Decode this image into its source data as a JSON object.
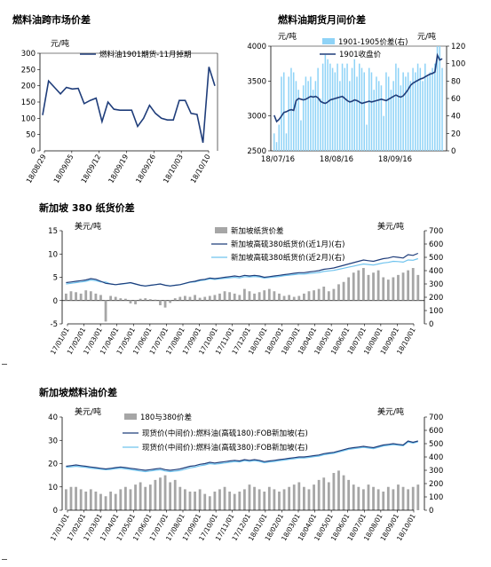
{
  "colors": {
    "navy": "#1f3d7a",
    "light_blue": "#6fc3ee",
    "bar_blue": "#8fd3f7",
    "gray_bar": "#a6a6a6",
    "axis": "#000000"
  },
  "chart_data": [
    {
      "title": "燃料油跨市场价差",
      "type": "line",
      "ylabel": "元/吨",
      "ylim": [
        0,
        300
      ],
      "yticks": [
        "0",
        "50",
        "100",
        "150",
        "200",
        "250",
        "300"
      ],
      "xticks": [
        "18/08/29",
        "18/09/05",
        "18/09/12",
        "18/09/19",
        "18/09/26",
        "18/10/03",
        "18/10/10"
      ],
      "legend_position": "top",
      "series": [
        {
          "name": "燃料油1901期货-11月掉期",
          "color": "#1f3d7a",
          "x": [
            0,
            1,
            2,
            3,
            4,
            5,
            6,
            7,
            8,
            9,
            10,
            11,
            12,
            13,
            14,
            15,
            16,
            17,
            18,
            19,
            20,
            21,
            22,
            23,
            24,
            25,
            26,
            27,
            28,
            29
          ],
          "y": [
            110,
            215,
            195,
            175,
            195,
            190,
            192,
            145,
            155,
            162,
            90,
            150,
            128,
            125,
            125,
            125,
            75,
            100,
            140,
            115,
            100,
            95,
            95,
            155,
            155,
            115,
            112,
            25,
            258,
            200
          ]
        }
      ]
    },
    {
      "title": "燃料油期货月间价差",
      "type": "bar+line",
      "ylabel_left": "元/吨",
      "ylabel_right": "元/吨",
      "ylim_left": [
        2500,
        4000
      ],
      "yticks_left": [
        "2500",
        "3000",
        "3500",
        "4000"
      ],
      "ylim_right": [
        0,
        120
      ],
      "yticks_right": [
        "0",
        "20",
        "40",
        "60",
        "80",
        "100",
        "120"
      ],
      "xticks": [
        "18/07/16",
        "18/08/16",
        "18/09/16"
      ],
      "legend_position": "top",
      "series": [
        {
          "name": "1901-1905价差(右)",
          "kind": "bar",
          "axis": "right",
          "color": "#8fd3f7",
          "values": [
            20,
            10,
            30,
            85,
            90,
            20,
            85,
            95,
            90,
            80,
            70,
            35,
            75,
            85,
            80,
            85,
            70,
            80,
            95,
            60,
            100,
            110,
            105,
            100,
            95,
            90,
            100,
            80,
            100,
            95,
            100,
            80,
            95,
            105,
            85,
            100,
            95,
            90,
            30,
            95,
            90,
            70,
            85,
            80,
            75,
            40,
            90,
            85,
            70,
            80,
            100,
            95,
            75,
            90,
            85,
            90,
            80,
            95,
            90,
            100,
            95,
            80,
            100,
            85,
            90,
            95,
            100,
            120,
            120,
            95
          ]
        },
        {
          "name": "1901收盘价",
          "kind": "line",
          "axis": "left",
          "color": "#1f3d7a",
          "values": [
            3010,
            2920,
            2950,
            3000,
            3050,
            3060,
            3080,
            3090,
            3080,
            3220,
            3250,
            3240,
            3230,
            3240,
            3260,
            3280,
            3270,
            3280,
            3260,
            3210,
            3190,
            3180,
            3200,
            3230,
            3240,
            3250,
            3260,
            3270,
            3280,
            3250,
            3220,
            3200,
            3210,
            3230,
            3220,
            3200,
            3180,
            3190,
            3200,
            3210,
            3200,
            3210,
            3220,
            3230,
            3240,
            3230,
            3220,
            3240,
            3260,
            3280,
            3300,
            3280,
            3270,
            3290,
            3330,
            3380,
            3440,
            3470,
            3490,
            3510,
            3530,
            3540,
            3560,
            3580,
            3600,
            3610,
            3630,
            3870,
            3800,
            3820
          ]
        }
      ]
    },
    {
      "title": "新加坡 380 纸货价差",
      "type": "bar+line",
      "ylabel_left": "美元/吨",
      "ylabel_right": "美元/吨",
      "ylim_left": [
        -5,
        15
      ],
      "yticks_left": [
        "-5",
        "0",
        "5",
        "10",
        "15"
      ],
      "ylim_right": [
        0,
        700
      ],
      "yticks_right": [
        "0",
        "100",
        "200",
        "300",
        "400",
        "500",
        "600",
        "700"
      ],
      "xticks": [
        "17/01/01",
        "17/02/01",
        "17/03/01",
        "17/04/01",
        "17/05/01",
        "17/06/01",
        "17/07/01",
        "17/08/01",
        "17/09/01",
        "17/10/01",
        "17/11/01",
        "17/12/01",
        "18/01/01",
        "18/02/01",
        "18/03/01",
        "18/04/01",
        "18/05/01",
        "18/06/01",
        "18/07/01",
        "18/08/01",
        "18/09/01",
        "18/10/01"
      ],
      "legend_position": "top",
      "series": [
        {
          "name": "新加坡纸货价差",
          "kind": "bar",
          "axis": "left",
          "color": "#a6a6a6",
          "values": [
            1.5,
            2.0,
            1.8,
            1.5,
            2.2,
            2.0,
            1.5,
            1.2,
            -4.5,
            1.0,
            0.8,
            0.5,
            0.4,
            -0.6,
            -0.8,
            0.4,
            0.5,
            0.3,
            0.2,
            -1.0,
            -1.5,
            -0.5,
            0.5,
            0.8,
            1.0,
            0.8,
            1.2,
            0.6,
            0.8,
            1.0,
            1.2,
            1.5,
            2.0,
            1.8,
            1.5,
            1.2,
            2.5,
            2.0,
            1.5,
            1.8,
            2.2,
            2.5,
            2.0,
            1.5,
            1.0,
            1.2,
            0.8,
            1.0,
            1.5,
            2.0,
            2.2,
            2.5,
            3.0,
            2.0,
            2.5,
            3.5,
            4.0,
            5.0,
            6.0,
            6.5,
            7.0,
            5.5,
            6.0,
            6.5,
            5.0,
            4.5,
            5.0,
            5.5,
            6.0,
            6.5,
            7.0,
            5.5
          ]
        },
        {
          "name": "新加坡高硫380纸货价(近1月)(右)",
          "kind": "line",
          "axis": "right",
          "color": "#1f3d7a",
          "values": [
            310,
            315,
            320,
            325,
            330,
            340,
            335,
            320,
            305,
            300,
            295,
            300,
            305,
            310,
            300,
            290,
            285,
            290,
            295,
            300,
            290,
            285,
            290,
            295,
            305,
            315,
            320,
            330,
            335,
            345,
            340,
            345,
            350,
            355,
            360,
            355,
            365,
            360,
            365,
            360,
            350,
            355,
            360,
            365,
            370,
            375,
            380,
            385,
            385,
            390,
            395,
            400,
            410,
            415,
            420,
            430,
            440,
            450,
            460,
            470,
            480,
            475,
            470,
            480,
            490,
            495,
            505,
            500,
            495,
            520,
            515,
            530
          ]
        },
        {
          "name": "新加坡高硫380纸货价(近2月)(右)",
          "kind": "line",
          "axis": "right",
          "color": "#6fc3ee",
          "values": [
            300,
            305,
            310,
            315,
            320,
            330,
            325,
            315,
            315,
            300,
            295,
            298,
            303,
            308,
            298,
            290,
            284,
            289,
            294,
            300,
            291,
            286,
            290,
            294,
            303,
            312,
            316,
            325,
            330,
            338,
            334,
            338,
            342,
            346,
            350,
            345,
            355,
            352,
            356,
            352,
            344,
            348,
            352,
            356,
            362,
            366,
            370,
            374,
            374,
            378,
            382,
            386,
            394,
            398,
            402,
            410,
            418,
            426,
            434,
            442,
            450,
            446,
            442,
            450,
            458,
            462,
            470,
            468,
            464,
            480,
            478,
            490
          ]
        }
      ]
    },
    {
      "title": "新加坡燃料油价差",
      "type": "bar+line",
      "ylabel_left": "美元/吨",
      "ylabel_right": "美元/吨",
      "ylim_left": [
        0,
        40
      ],
      "yticks_left": [
        "0",
        "10",
        "20",
        "30",
        "40"
      ],
      "ylim_right": [
        0,
        700
      ],
      "yticks_right": [
        "0",
        "100",
        "200",
        "300",
        "400",
        "500",
        "600",
        "700"
      ],
      "xticks": [
        "17/01/01",
        "17/02/01",
        "17/03/01",
        "17/04/01",
        "17/05/01",
        "17/06/01",
        "17/07/01",
        "17/08/01",
        "17/09/01",
        "17/10/01",
        "17/11/01",
        "17/12/01",
        "18/01/01",
        "18/02/01",
        "18/03/01",
        "18/04/01",
        "18/05/01",
        "18/06/01",
        "18/07/01",
        "18/08/01",
        "18/09/01",
        "18/10/01"
      ],
      "legend_position": "top",
      "series": [
        {
          "name": "180与380价差",
          "kind": "bar",
          "axis": "left",
          "color": "#a6a6a6",
          "values": [
            9,
            10,
            10,
            9,
            8,
            9,
            8,
            7,
            6,
            8,
            7,
            9,
            10,
            9,
            11,
            12,
            10,
            11,
            13,
            14,
            15,
            12,
            13,
            10,
            9,
            8,
            8,
            9,
            7,
            6,
            8,
            9,
            10,
            8,
            7,
            8,
            9,
            11,
            10,
            9,
            8,
            10,
            9,
            8,
            9,
            10,
            11,
            12,
            10,
            9,
            11,
            13,
            14,
            12,
            16,
            17,
            15,
            13,
            11,
            10,
            9,
            11,
            10,
            9,
            8,
            10,
            9,
            11,
            10,
            9,
            10,
            11
          ]
        },
        {
          "name": "现货价(中间价):燃料油(高硫180):FOB新加坡(右)",
          "kind": "line",
          "axis": "right",
          "color": "#1f3d7a",
          "values": [
            330,
            335,
            340,
            335,
            330,
            325,
            320,
            315,
            310,
            315,
            320,
            325,
            320,
            315,
            310,
            305,
            300,
            305,
            310,
            315,
            305,
            300,
            305,
            310,
            320,
            330,
            335,
            345,
            350,
            360,
            355,
            360,
            365,
            370,
            375,
            370,
            380,
            375,
            380,
            375,
            365,
            370,
            375,
            380,
            385,
            390,
            395,
            400,
            400,
            405,
            410,
            415,
            425,
            430,
            435,
            445,
            455,
            465,
            470,
            475,
            480,
            475,
            470,
            480,
            490,
            495,
            500,
            495,
            490,
            520,
            510,
            520
          ]
        },
        {
          "name": "现货价(中间价):燃料油(高硫380):FOB新加坡(右)",
          "kind": "line",
          "axis": "right",
          "color": "#6fc3ee",
          "values": [
            322,
            326,
            330,
            326,
            322,
            316,
            312,
            308,
            304,
            307,
            312,
            316,
            311,
            306,
            300,
            295,
            290,
            295,
            300,
            304,
            295,
            290,
            294,
            298,
            308,
            318,
            324,
            334,
            340,
            350,
            346,
            350,
            355,
            360,
            366,
            362,
            372,
            367,
            372,
            367,
            357,
            362,
            366,
            372,
            377,
            382,
            387,
            392,
            392,
            397,
            402,
            407,
            417,
            422,
            427,
            437,
            447,
            457,
            462,
            467,
            472,
            467,
            462,
            472,
            482,
            487,
            492,
            488,
            484,
            512,
            504,
            514
          ]
        }
      ]
    }
  ]
}
